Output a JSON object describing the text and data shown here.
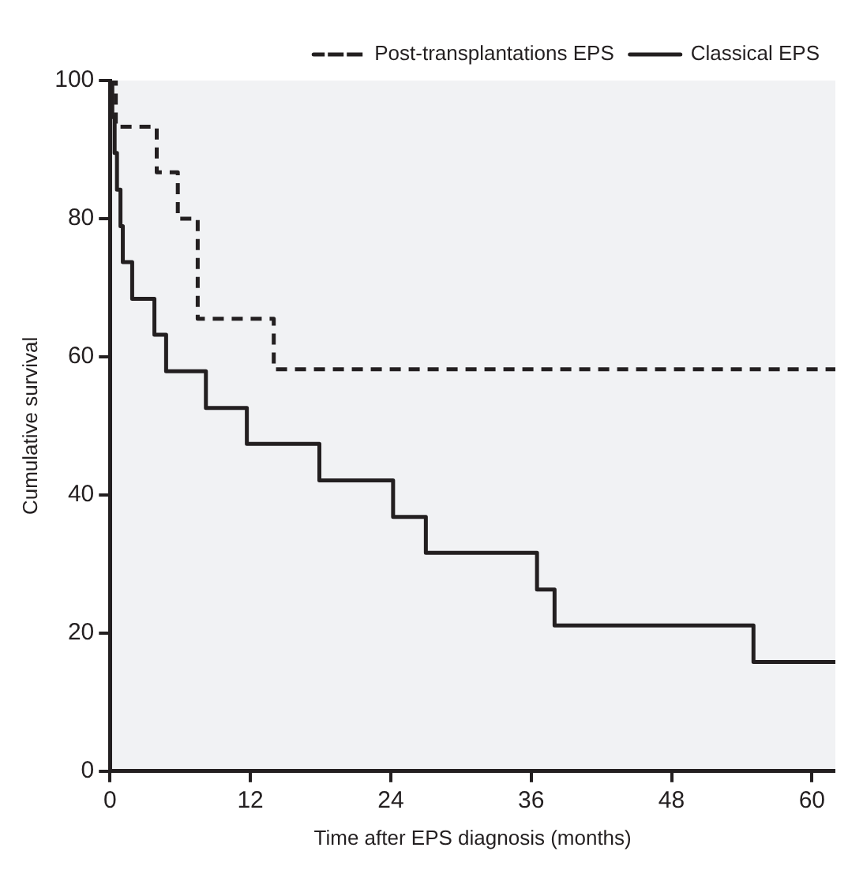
{
  "chart_data": {
    "type": "step",
    "xlabel": "Time after EPS diagnosis (months)",
    "ylabel": "Cumulative survival",
    "xlim": [
      0,
      62
    ],
    "xticks": [
      0,
      12,
      24,
      36,
      48,
      60
    ],
    "ylim": [
      0,
      100
    ],
    "yticks": [
      0,
      20,
      40,
      60,
      80,
      100
    ],
    "grid": false,
    "legend": "top right",
    "marker": "none",
    "series": [
      {
        "name": "Post-transplantations EPS",
        "color": "#231f20",
        "line_style": "dashed",
        "x": [
          0,
          0.5,
          4.0,
          5.8,
          7.5,
          14.0,
          62
        ],
        "values": [
          100,
          93.3,
          86.7,
          80,
          65.5,
          58.2,
          58.2
        ]
      },
      {
        "name": "Classical EPS",
        "color": "#231f20",
        "line_style": "solid",
        "x": [
          0,
          0.2,
          0.4,
          0.6,
          0.9,
          1.1,
          1.9,
          3.8,
          4.8,
          8.2,
          11.7,
          17.9,
          24.2,
          27,
          36.5,
          38,
          55,
          62
        ],
        "values": [
          100,
          94.7,
          89.5,
          84.2,
          78.9,
          73.7,
          68.4,
          63.2,
          57.9,
          52.6,
          47.4,
          42.1,
          36.8,
          31.6,
          26.3,
          21.1,
          15.8,
          15.8
        ]
      }
    ]
  }
}
